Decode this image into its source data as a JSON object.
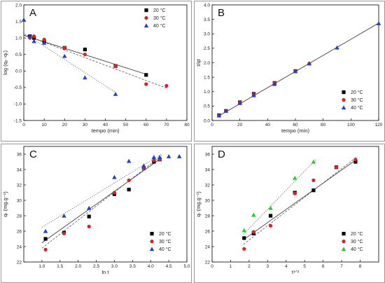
{
  "chart_data": [
    {
      "type": "scatter",
      "panel": "A",
      "xlabel": "tempo (min)",
      "ylabel": "log (qₑ -qₜ)",
      "xlim": [
        0,
        80
      ],
      "ylim": [
        -1.5,
        2.0
      ],
      "xticks": [
        "0",
        "10",
        "20",
        "30",
        "40",
        "50",
        "60",
        "70",
        "80"
      ],
      "yticks": [
        "-1.5",
        "-1.0",
        "-0.5",
        "0.0",
        "0.5",
        "1.0",
        "1.5",
        "2.0"
      ],
      "grid": false,
      "legend_position": "top-right",
      "series": [
        {
          "name": "20 °C",
          "color": "#000000",
          "marker": "square",
          "line": "solid",
          "x": [
            3,
            5,
            10,
            20,
            30,
            45,
            60
          ],
          "y": [
            1.05,
            1.0,
            0.9,
            0.7,
            0.65,
            0.15,
            -0.12
          ],
          "fit": [
            [
              0,
              1.08
            ],
            [
              60,
              -0.1
            ]
          ]
        },
        {
          "name": "30 °C",
          "color": "#e02020",
          "marker": "circle",
          "line": "dashed",
          "x": [
            3,
            5,
            10,
            20,
            30,
            45,
            60,
            70
          ],
          "y": [
            1.0,
            1.05,
            0.95,
            0.7,
            0.5,
            0.15,
            -0.4,
            -0.45
          ],
          "fit": [
            [
              0,
              1.1
            ],
            [
              70,
              -0.52
            ]
          ]
        },
        {
          "name": "40 °C",
          "color": "#2040d0",
          "marker": "triangle",
          "line": "dotted",
          "x": [
            0,
            3,
            5,
            10,
            20,
            30,
            45
          ],
          "y": [
            1.55,
            1.05,
            0.9,
            0.85,
            0.45,
            -0.2,
            -0.7
          ],
          "fit": [
            [
              0,
              1.15
            ],
            [
              45,
              -0.65
            ]
          ]
        }
      ]
    },
    {
      "type": "scatter",
      "panel": "B",
      "xlabel": "tempo (min)",
      "ylabel": "t/qt",
      "xlim": [
        0,
        120
      ],
      "ylim": [
        0,
        4.0
      ],
      "xticks": [
        "0",
        "20",
        "40",
        "60",
        "80",
        "100",
        "120"
      ],
      "yticks": [
        "0.0",
        "0.5",
        "1.0",
        "1.5",
        "2.0",
        "2.5",
        "3.0",
        "3.5",
        "4.0"
      ],
      "grid": false,
      "legend_position": "bottom-right",
      "series": [
        {
          "name": "20 °C",
          "color": "#000000",
          "marker": "square",
          "line": "solid",
          "x": [
            5,
            10,
            20,
            30,
            45,
            60
          ],
          "y": [
            0.18,
            0.33,
            0.63,
            0.92,
            1.3,
            1.71
          ],
          "fit": [
            [
              5,
              0.16
            ],
            [
              120,
              3.37
            ]
          ]
        },
        {
          "name": "30 °C",
          "color": "#e02020",
          "marker": "circle",
          "line": "dashed",
          "x": [
            5,
            10,
            20,
            30,
            45,
            60,
            70
          ],
          "y": [
            0.17,
            0.33,
            0.62,
            0.9,
            1.3,
            1.71,
            1.97
          ],
          "fit": [
            [
              5,
              0.16
            ],
            [
              120,
              3.37
            ]
          ]
        },
        {
          "name": "40 °C",
          "color": "#2040d0",
          "marker": "triangle",
          "line": "dotted",
          "x": [
            5,
            10,
            20,
            30,
            45,
            60,
            70,
            90,
            120
          ],
          "y": [
            0.17,
            0.33,
            0.6,
            0.87,
            1.26,
            1.7,
            1.97,
            2.52,
            3.36
          ],
          "fit": [
            [
              5,
              0.16
            ],
            [
              120,
              3.37
            ]
          ]
        }
      ]
    },
    {
      "type": "scatter",
      "panel": "C",
      "xlabel": "ln t",
      "ylabel": "qₜ (mg.g⁻¹)",
      "xlim": [
        0.5,
        5.0
      ],
      "ylim": [
        22,
        37
      ],
      "xticks": [
        "1.0",
        "1.5",
        "2.0",
        "2.5",
        "3.0",
        "3.5",
        "4.0",
        "4.5",
        "5.0"
      ],
      "yticks": [
        "22",
        "24",
        "26",
        "28",
        "30",
        "32",
        "34",
        "36"
      ],
      "grid": false,
      "legend_position": "bottom-right",
      "series": [
        {
          "name": "20 °C",
          "color": "#000000",
          "marker": "square",
          "line": "solid",
          "x": [
            1.1,
            1.61,
            2.3,
            3.0,
            3.4,
            3.81,
            4.09,
            4.25
          ],
          "y": [
            25.0,
            25.8,
            27.9,
            30.8,
            31.4,
            34.2,
            35.0,
            35.3
          ],
          "fit": [
            [
              1.0,
              24.5
            ],
            [
              4.3,
              35.5
            ]
          ]
        },
        {
          "name": "30 °C",
          "color": "#e02020",
          "marker": "circle",
          "line": "dashed",
          "x": [
            1.1,
            1.61,
            2.3,
            3.0,
            3.4,
            3.81,
            4.09,
            4.25
          ],
          "y": [
            23.6,
            25.7,
            26.6,
            31.0,
            32.6,
            34.2,
            35.2,
            35.3
          ],
          "fit": [
            [
              1.0,
              23.8
            ],
            [
              4.3,
              35.8
            ]
          ]
        },
        {
          "name": "40 °C",
          "color": "#2040d0",
          "marker": "triangle",
          "line": "dotted",
          "x": [
            1.1,
            1.61,
            2.3,
            3.0,
            3.4,
            3.81,
            4.09,
            4.25,
            4.5,
            4.79
          ],
          "y": [
            26.0,
            28.0,
            29.0,
            33.0,
            35.1,
            34.5,
            35.6,
            35.6,
            35.7,
            35.7
          ],
          "fit": [
            [
              1.0,
              26.5
            ],
            [
              4.3,
              36.0
            ]
          ]
        }
      ]
    },
    {
      "type": "scatter",
      "panel": "D",
      "xlabel": "t¹ᐟ²",
      "ylabel": "qₜ (mg.g⁻¹)",
      "xlim": [
        0,
        9
      ],
      "ylim": [
        22,
        37
      ],
      "xticks": [
        "0",
        "1",
        "2",
        "3",
        "4",
        "5",
        "6",
        "7",
        "8"
      ],
      "yticks": [
        "22",
        "24",
        "26",
        "28",
        "30",
        "32",
        "34",
        "36"
      ],
      "grid": false,
      "legend_position": "bottom-right",
      "series": [
        {
          "name": "20 °C",
          "color": "#000000",
          "marker": "square",
          "line": "solid",
          "x": [
            1.73,
            2.24,
            3.16,
            4.47,
            5.48,
            6.71,
            7.75
          ],
          "y": [
            25.1,
            25.7,
            28.0,
            31.0,
            31.3,
            34.3,
            35.0
          ],
          "fit": [
            [
              1.7,
              24.9
            ],
            [
              7.8,
              35.3
            ]
          ]
        },
        {
          "name": "30 °C",
          "color": "#e02020",
          "marker": "circle",
          "line": "dashed",
          "x": [
            1.73,
            2.24,
            3.16,
            4.47,
            5.48,
            6.71,
            7.75
          ],
          "y": [
            23.7,
            25.9,
            26.7,
            30.9,
            32.6,
            34.3,
            35.3
          ],
          "fit": [
            [
              1.7,
              24.3
            ],
            [
              7.8,
              35.6
            ]
          ]
        },
        {
          "name": "40 °C",
          "color": "#20d020",
          "marker": "triangle",
          "line": "dotted",
          "x": [
            1.73,
            2.24,
            3.16,
            4.47,
            5.48
          ],
          "y": [
            26.1,
            28.1,
            29.0,
            32.9,
            35.0
          ],
          "fit": [
            [
              1.7,
              25.6
            ],
            [
              5.6,
              35.3
            ]
          ]
        }
      ]
    }
  ]
}
